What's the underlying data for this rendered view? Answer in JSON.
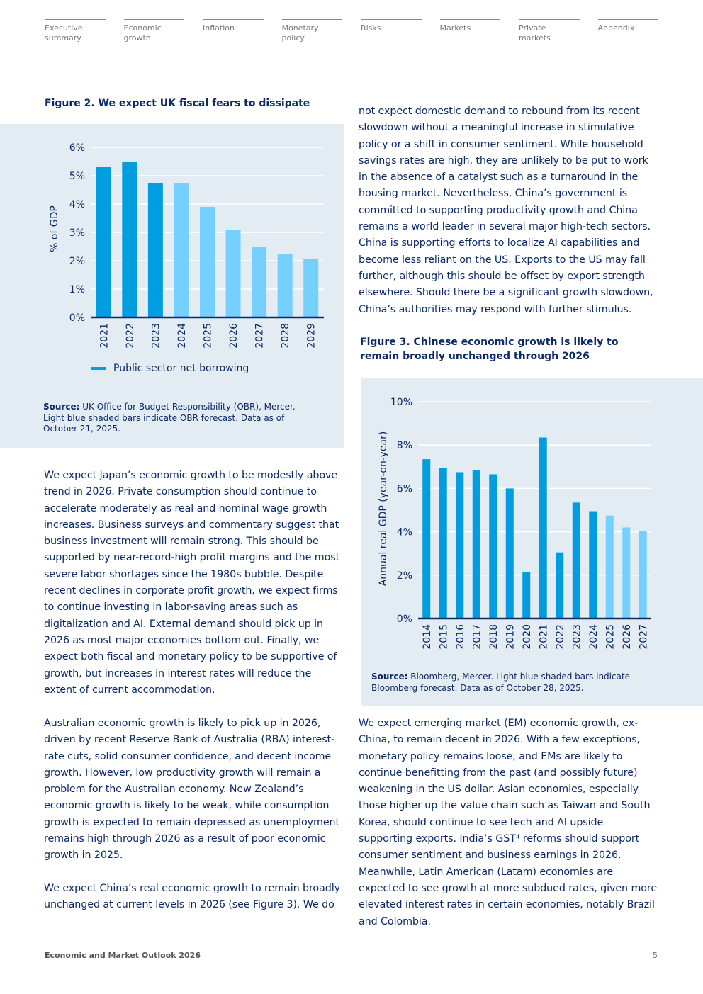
{
  "nav": [
    "Executive summary",
    "Economic growth",
    "Inflation",
    "Monetary policy",
    "Risks",
    "Markets",
    "Private markets",
    "Appendix"
  ],
  "figure2": {
    "title": "Figure 2. We expect UK fiscal fears to dissipate",
    "source_label": "Source:",
    "source_text": " UK Office for Budget Responsibility (OBR), Mercer. Light blue shaded bars indicate OBR forecast. Data as of October 21, 2025.",
    "legend": "Public sector net borrowing"
  },
  "figure3": {
    "title": "Figure 3. Chinese economic growth is likely to remain broadly unchanged through 2026",
    "source_label": "Source:",
    "source_text": " Bloomberg, Mercer. Light blue shaded bars indicate Bloomberg forecast. Data as of October 28, 2025."
  },
  "chart_data": [
    {
      "type": "bar",
      "title": "Figure 2. We expect UK fiscal fears to dissipate",
      "ylabel": "% of GDP",
      "xlabel": "",
      "categories": [
        "2021",
        "2022",
        "2023",
        "2024",
        "2025",
        "2026",
        "2027",
        "2028",
        "2029"
      ],
      "values": [
        5.3,
        5.5,
        4.75,
        4.75,
        3.9,
        3.1,
        2.5,
        2.25,
        2.05
      ],
      "forecast": [
        false,
        false,
        false,
        true,
        true,
        true,
        true,
        true,
        true
      ],
      "ylim": [
        0,
        6
      ],
      "yticks": [
        "0%",
        "1%",
        "2%",
        "3%",
        "4%",
        "5%",
        "6%"
      ],
      "grid": true,
      "legend": [
        "Public sector net borrowing"
      ],
      "legend_position": "bottom",
      "colors": {
        "actual": "#009de0",
        "forecast": "#76d0ff"
      }
    },
    {
      "type": "bar",
      "title": "Figure 3. Chinese economic growth is likely to remain broadly unchanged through 2026",
      "ylabel": "Annual real GDP (year-on-year)",
      "xlabel": "",
      "categories": [
        "2014",
        "2015",
        "2016",
        "2017",
        "2018",
        "2019",
        "2020",
        "2021",
        "2022",
        "2023",
        "2024",
        "2025",
        "2026",
        "2027"
      ],
      "values": [
        7.35,
        6.95,
        6.75,
        6.85,
        6.65,
        6.0,
        2.15,
        8.35,
        3.05,
        5.35,
        4.95,
        4.75,
        4.2,
        4.05
      ],
      "forecast": [
        false,
        false,
        false,
        false,
        false,
        false,
        false,
        false,
        false,
        false,
        false,
        true,
        true,
        true
      ],
      "ylim": [
        0,
        10
      ],
      "yticks": [
        "0%",
        "2%",
        "4%",
        "6%",
        "8%",
        "10%"
      ],
      "grid": true,
      "colors": {
        "actual": "#009de0",
        "forecast": "#76d0ff"
      }
    }
  ],
  "paragraphs": {
    "japan": "We expect Japan’s economic growth to be modestly above trend in 2026. Private consumption should continue to accelerate moderately as real and nominal wage growth increases. Business surveys and commentary suggest that business investment will remain strong. This should be supported by near-record-high profit margins and the most severe labor shortages since the 1980s bubble. Despite recent declines in corporate profit growth, we expect firms to continue investing in labor-saving areas such as digitalization and AI. External demand should pick up in 2026 as most major economies bottom out. Finally, we expect both fiscal and monetary policy to be supportive of growth, but increases in interest rates will reduce the extent of current accommodation.",
    "australia": "Australian economic growth is likely to pick up in 2026, driven by recent Reserve Bank of Australia (RBA) interest-rate cuts, solid consumer confidence, and decent income growth. However, low productivity growth will remain a problem for the Australian economy. New Zealand’s economic growth is likely to be weak, while consumption growth is expected to remain depressed as unemployment remains high through 2026 as a result of poor economic growth in 2025.",
    "china_start": "We expect China’s real economic growth to remain broadly unchanged at current levels in 2026 (see Figure 3). We do",
    "china_cont": "not expect domestic demand to rebound from its recent slowdown without a meaningful increase in stimulative policy or a shift in consumer sentiment. While household savings rates are high, they are unlikely to be put to work in the absence of a catalyst such as a turnaround in the housing market. Nevertheless, China’s government is committed to supporting productivity growth and China remains a world leader in several major high-tech sectors. China is supporting efforts to localize AI capabilities and become less reliant on the US. Exports to the US may fall further, although this should be offset by export strength elsewhere. Should there be a significant growth slowdown, China’s authorities may respond with further stimulus.",
    "em": "We expect emerging market (EM) economic growth, ex-China, to remain decent in 2026. With a few exceptions, monetary policy remains loose, and EMs are likely to continue benefitting from the past (and possibly future) weakening in the US dollar. Asian economies, especially those higher up the value chain such as Taiwan and South Korea, should continue to see tech and AI upside supporting exports. India’s GST⁴ reforms should support consumer sentiment and business earnings in 2026. Meanwhile, Latin American (Latam) economies are expected to see growth at more subdued rates, given more elevated interest rates in certain economies, notably Brazil and Colombia."
  },
  "footer": {
    "title": "Economic and Market Outlook 2026",
    "page": "5"
  }
}
